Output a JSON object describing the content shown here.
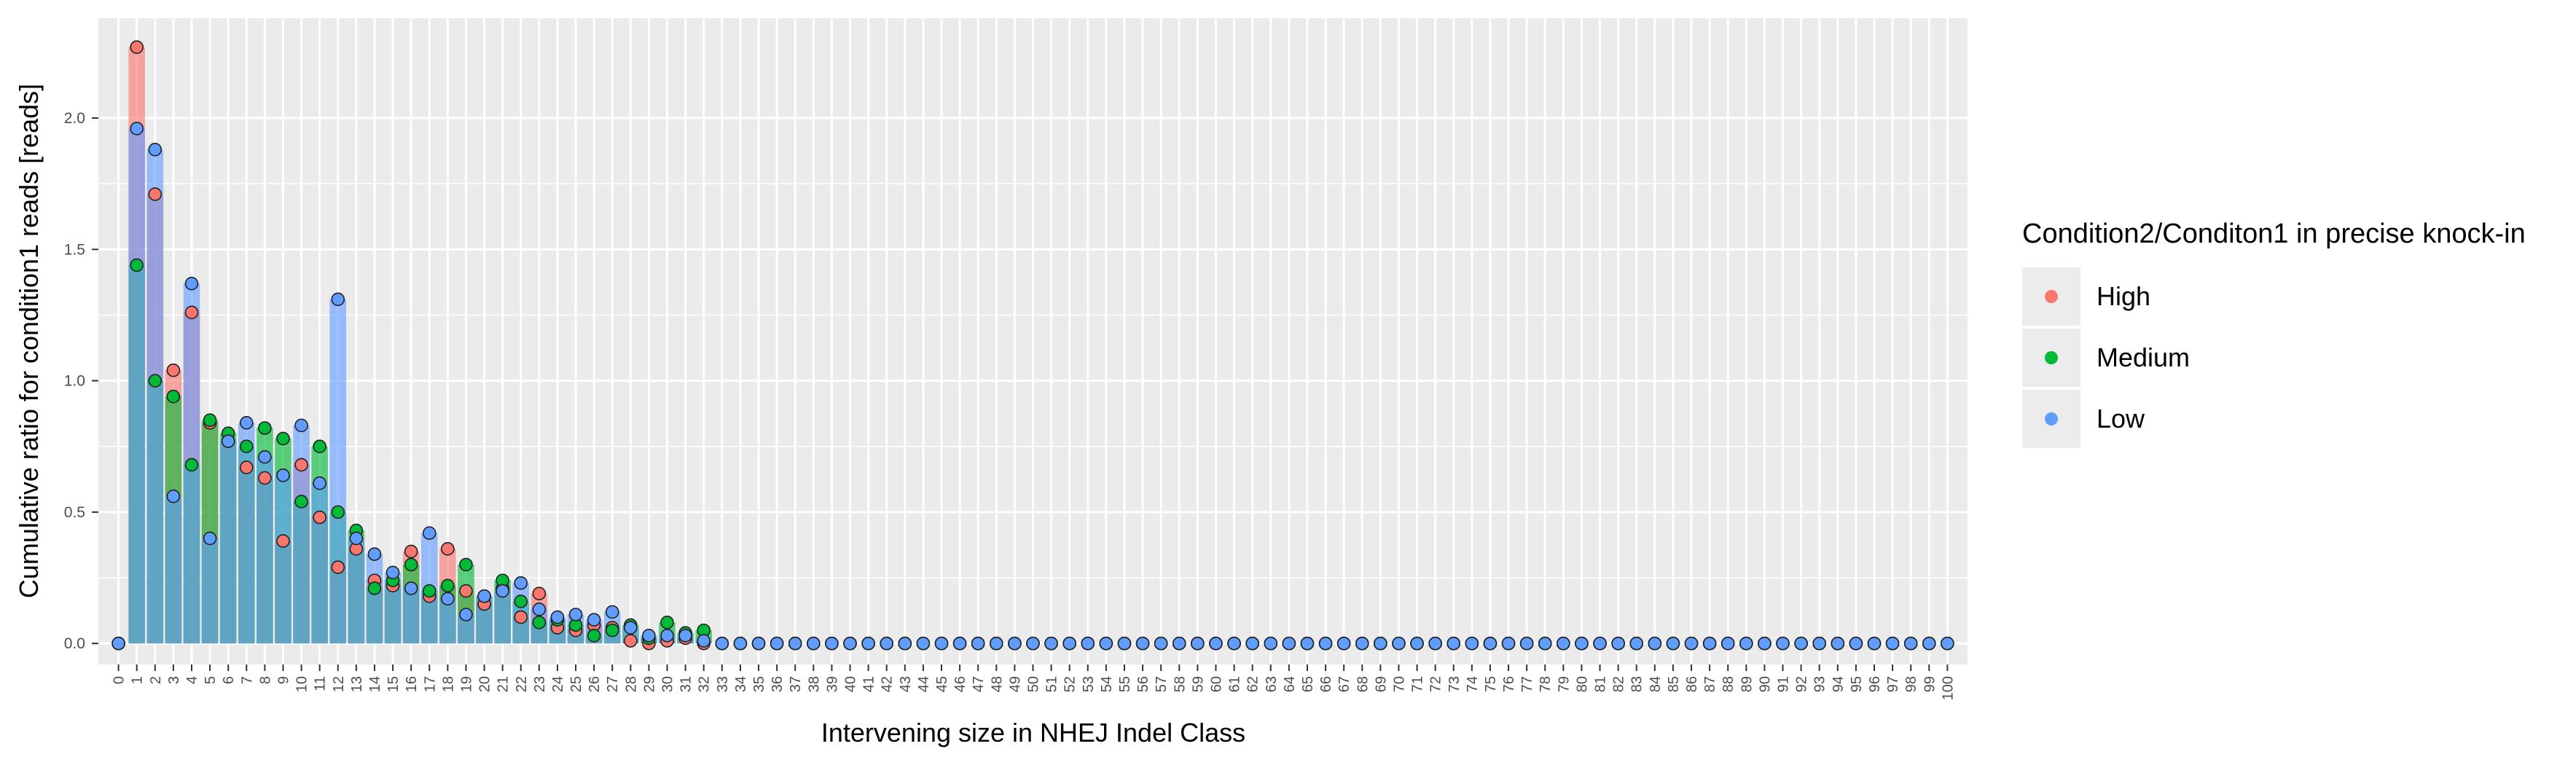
{
  "chart_data": {
    "type": "bar",
    "title": "",
    "xlabel": "Intervening size in NHEJ Indel Class",
    "ylabel": "Cumulative ratio for condition1 reads [reads]",
    "x": [
      0,
      1,
      2,
      3,
      4,
      5,
      6,
      7,
      8,
      9,
      10,
      11,
      12,
      13,
      14,
      15,
      16,
      17,
      18,
      19,
      20,
      21,
      22,
      23,
      24,
      25,
      26,
      27,
      28,
      29,
      30,
      31,
      32,
      33,
      34,
      35,
      36,
      37,
      38,
      39,
      40,
      41,
      42,
      43,
      44,
      45,
      46,
      47,
      48,
      49,
      50,
      51,
      52,
      53,
      54,
      55,
      56,
      57,
      58,
      59,
      60,
      61,
      62,
      63,
      64,
      65,
      66,
      67,
      68,
      69,
      70,
      71,
      72,
      73,
      74,
      75,
      76,
      77,
      78,
      79,
      80,
      81,
      82,
      83,
      84,
      85,
      86,
      87,
      88,
      89,
      90,
      91,
      92,
      93,
      94,
      95,
      96,
      97,
      98,
      99,
      100
    ],
    "ylim": [
      -0.08,
      2.38
    ],
    "yticks": [
      0.0,
      0.5,
      1.0,
      1.5,
      2.0
    ],
    "ytick_labels": [
      "0.0",
      "0.5",
      "1.0",
      "1.5",
      "2.0"
    ],
    "grid": true,
    "legend": {
      "title": "Condition2/Conditon1 in precise knock-in",
      "position": "right",
      "items": [
        {
          "label": "High",
          "color": "#F8766D"
        },
        {
          "label": "Medium",
          "color": "#00BA38"
        },
        {
          "label": "Low",
          "color": "#619CFF"
        }
      ]
    },
    "series": [
      {
        "name": "High",
        "color": "#F8766D",
        "values": [
          0,
          2.27,
          1.71,
          1.04,
          1.26,
          0.84,
          0.77,
          0.67,
          0.63,
          0.39,
          0.68,
          0.48,
          0.29,
          0.36,
          0.24,
          0.22,
          0.35,
          0.18,
          0.36,
          0.2,
          0.15,
          0.21,
          0.1,
          0.19,
          0.06,
          0.05,
          0.07,
          0.06,
          0.01,
          0.0,
          0.01,
          0.02,
          0.0,
          0,
          0,
          0,
          0,
          0,
          0,
          0,
          0,
          0,
          0,
          0,
          0,
          0,
          0,
          0,
          0,
          0,
          0,
          0,
          0,
          0,
          0,
          0,
          0,
          0,
          0,
          0,
          0,
          0,
          0,
          0,
          0,
          0,
          0,
          0,
          0,
          0,
          0,
          0,
          0,
          0,
          0,
          0,
          0,
          0,
          0,
          0,
          0,
          0,
          0,
          0,
          0,
          0,
          0,
          0,
          0,
          0,
          0,
          0,
          0,
          0,
          0,
          0,
          0,
          0,
          0,
          0,
          0
        ]
      },
      {
        "name": "Medium",
        "color": "#00BA38",
        "values": [
          0,
          1.44,
          1.0,
          0.94,
          0.68,
          0.85,
          0.8,
          0.75,
          0.82,
          0.78,
          0.54,
          0.75,
          0.5,
          0.43,
          0.21,
          0.24,
          0.3,
          0.2,
          0.22,
          0.3,
          0.18,
          0.24,
          0.16,
          0.08,
          0.09,
          0.07,
          0.03,
          0.05,
          0.07,
          0.02,
          0.08,
          0.04,
          0.05,
          0,
          0,
          0,
          0,
          0,
          0,
          0,
          0,
          0,
          0,
          0,
          0,
          0,
          0,
          0,
          0,
          0,
          0,
          0,
          0,
          0,
          0,
          0,
          0,
          0,
          0,
          0,
          0,
          0,
          0,
          0,
          0,
          0,
          0,
          0,
          0,
          0,
          0,
          0,
          0,
          0,
          0,
          0,
          0,
          0,
          0,
          0,
          0,
          0,
          0,
          0,
          0,
          0,
          0,
          0,
          0,
          0,
          0,
          0,
          0,
          0,
          0,
          0,
          0,
          0,
          0,
          0,
          0
        ]
      },
      {
        "name": "Low",
        "color": "#619CFF",
        "values": [
          0,
          1.96,
          1.88,
          0.56,
          1.37,
          0.4,
          0.77,
          0.84,
          0.71,
          0.64,
          0.83,
          0.61,
          1.31,
          0.4,
          0.34,
          0.27,
          0.21,
          0.42,
          0.17,
          0.11,
          0.18,
          0.2,
          0.23,
          0.13,
          0.1,
          0.11,
          0.09,
          0.12,
          0.06,
          0.03,
          0.03,
          0.03,
          0.01,
          0,
          0,
          0,
          0,
          0,
          0,
          0,
          0,
          0,
          0,
          0,
          0,
          0,
          0,
          0,
          0,
          0,
          0,
          0,
          0,
          0,
          0,
          0,
          0,
          0,
          0,
          0,
          0,
          0,
          0,
          0,
          0,
          0,
          0,
          0,
          0,
          0,
          0,
          0,
          0,
          0,
          0,
          0,
          0,
          0,
          0,
          0,
          0,
          0,
          0,
          0,
          0,
          0,
          0,
          0,
          0,
          0,
          0,
          0,
          0,
          0,
          0,
          0,
          0,
          0,
          0,
          0,
          0
        ]
      }
    ]
  }
}
